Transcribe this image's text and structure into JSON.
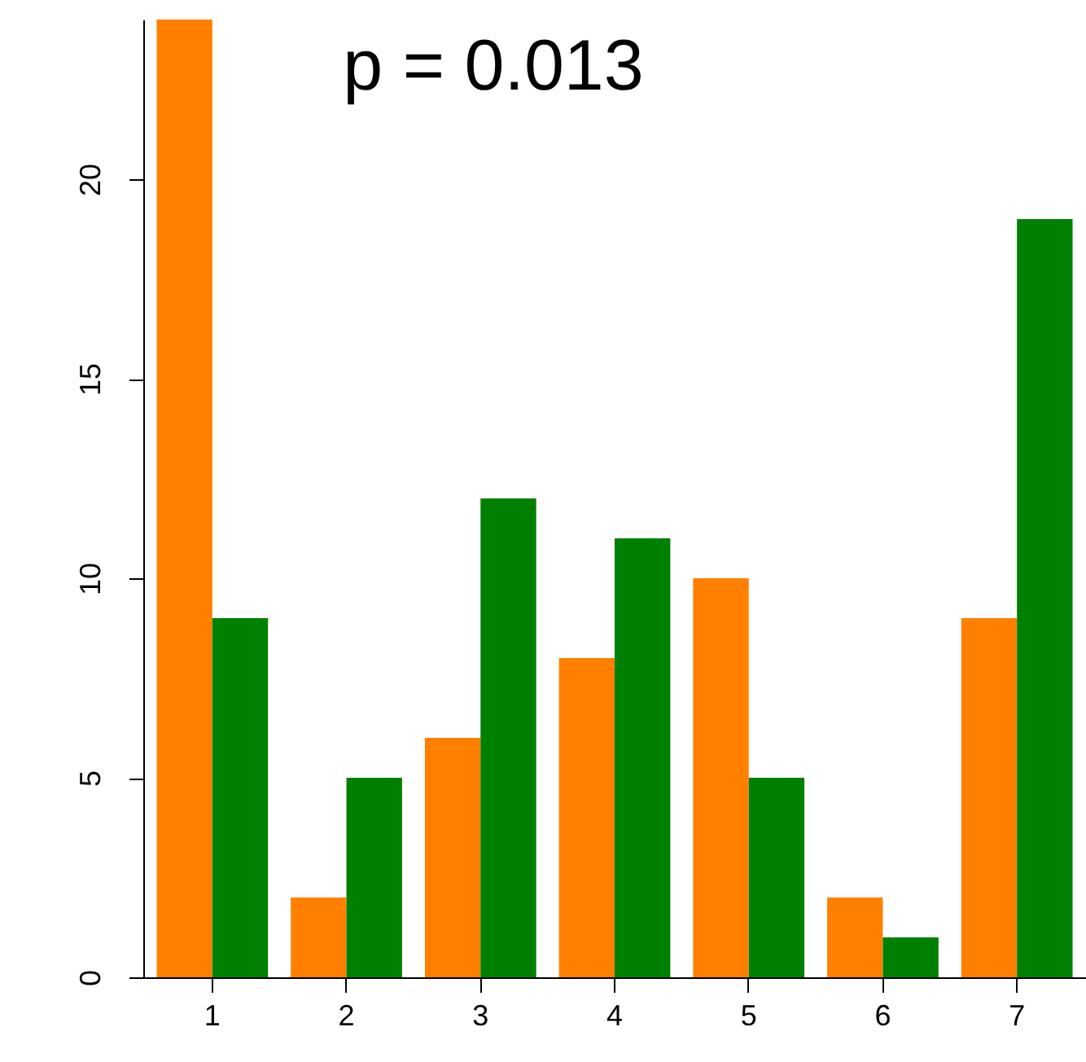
{
  "chart_data": {
    "type": "bar",
    "categories": [
      "1",
      "2",
      "3",
      "4",
      "5",
      "6",
      "7"
    ],
    "series": [
      {
        "color": "#ff8000",
        "values": [
          24,
          2,
          6,
          8,
          10,
          2,
          9
        ]
      },
      {
        "color": "#008000",
        "values": [
          9,
          5,
          12,
          11,
          5,
          1,
          19
        ]
      }
    ],
    "ylim": [
      0,
      24
    ],
    "yticks": [
      0,
      5,
      10,
      15,
      20
    ],
    "grid": false,
    "annotations": [
      "p = 0.013"
    ]
  }
}
